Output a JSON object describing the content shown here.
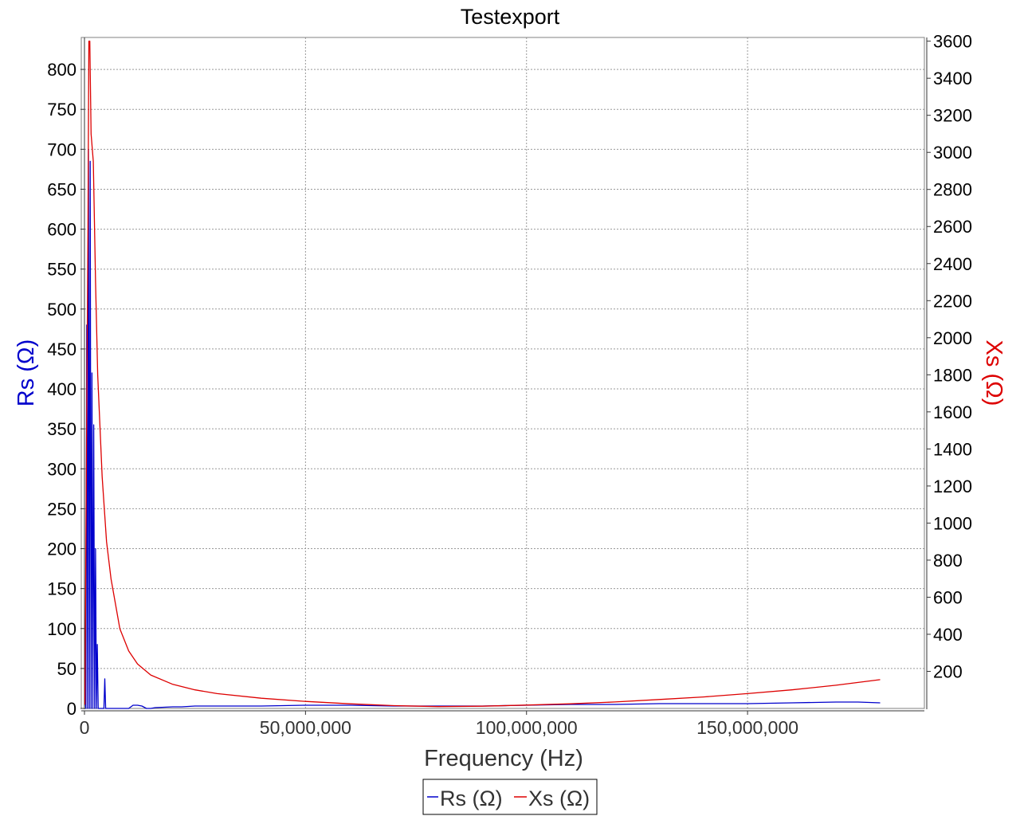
{
  "chart_data": {
    "type": "line",
    "title": "Testexport",
    "xlabel": "Frequency (Hz)",
    "ylabel_left": "Rs (Ω)",
    "ylabel_right": "Xs (Ω)",
    "xlim": [
      0,
      190000000
    ],
    "ylim_left": [
      0,
      840
    ],
    "ylim_right": [
      0,
      3620
    ],
    "x_ticks": [
      0,
      50000000,
      100000000,
      150000000
    ],
    "x_tick_labels": [
      "0",
      "50,000,000",
      "100,000,000",
      "150,000,000"
    ],
    "y_left_ticks": [
      0,
      50,
      100,
      150,
      200,
      250,
      300,
      350,
      400,
      450,
      500,
      550,
      600,
      650,
      700,
      750,
      800
    ],
    "y_right_ticks": [
      200,
      400,
      600,
      800,
      1000,
      1200,
      1400,
      1600,
      1800,
      2000,
      2200,
      2400,
      2600,
      2800,
      3000,
      3200,
      3400,
      3600
    ],
    "grid": true,
    "legend_position": "bottom",
    "legend": [
      "Rs (Ω)",
      "Xs (Ω)"
    ],
    "colors": {
      "Rs": "#0000cc",
      "Xs": "#dd0000",
      "left_axis_title": "#0000cc",
      "right_axis_title": "#dd0000"
    },
    "series": [
      {
        "name": "Rs (Ω)",
        "axis": "left",
        "x": [
          100000,
          300000,
          500000,
          700000,
          900000,
          1100000,
          1300000,
          1500000,
          1700000,
          1900000,
          2100000,
          2300000,
          2500000,
          2700000,
          2900000,
          3100000,
          3300000,
          3600000,
          4000000,
          4400000,
          4600000,
          4800000,
          5000000,
          5500000,
          7000000,
          10000000,
          11000000,
          12000000,
          13000000,
          14000000,
          15000000,
          16000000,
          20000000,
          22000000,
          25000000,
          30000000,
          40000000,
          50000000,
          60000000,
          70000000,
          80000000,
          90000000,
          100000000,
          110000000,
          120000000,
          130000000,
          140000000,
          150000000,
          160000000,
          170000000,
          175000000,
          180000000
        ],
        "values": [
          20,
          0,
          480,
          0,
          700,
          0,
          685,
          0,
          420,
          0,
          355,
          0,
          200,
          0,
          80,
          0,
          0,
          0,
          0,
          0,
          37,
          0,
          0,
          0,
          0,
          0,
          4,
          4,
          3,
          0,
          0,
          1,
          2,
          2,
          3,
          3,
          3,
          4,
          4,
          3,
          3,
          3,
          4,
          5,
          5,
          6,
          6,
          6,
          7,
          8,
          8,
          7
        ]
      },
      {
        "name": "Xs (Ω)",
        "axis": "right",
        "x": [
          100000,
          300000,
          500000,
          800000,
          1000000,
          1200000,
          1500000,
          2000000,
          2500000,
          3000000,
          4000000,
          5000000,
          6000000,
          8000000,
          10000000,
          12000000,
          15000000,
          20000000,
          25000000,
          30000000,
          40000000,
          50000000,
          60000000,
          70000000,
          80000000,
          90000000,
          100000000,
          110000000,
          120000000,
          130000000,
          140000000,
          150000000,
          160000000,
          170000000,
          180000000
        ],
        "values": [
          20,
          800,
          1600,
          2600,
          3600,
          3600,
          3100,
          2950,
          2300,
          1800,
          1250,
          900,
          700,
          430,
          310,
          240,
          180,
          130,
          100,
          80,
          55,
          38,
          25,
          15,
          10,
          12,
          18,
          25,
          35,
          48,
          62,
          80,
          100,
          125,
          155
        ]
      }
    ]
  }
}
